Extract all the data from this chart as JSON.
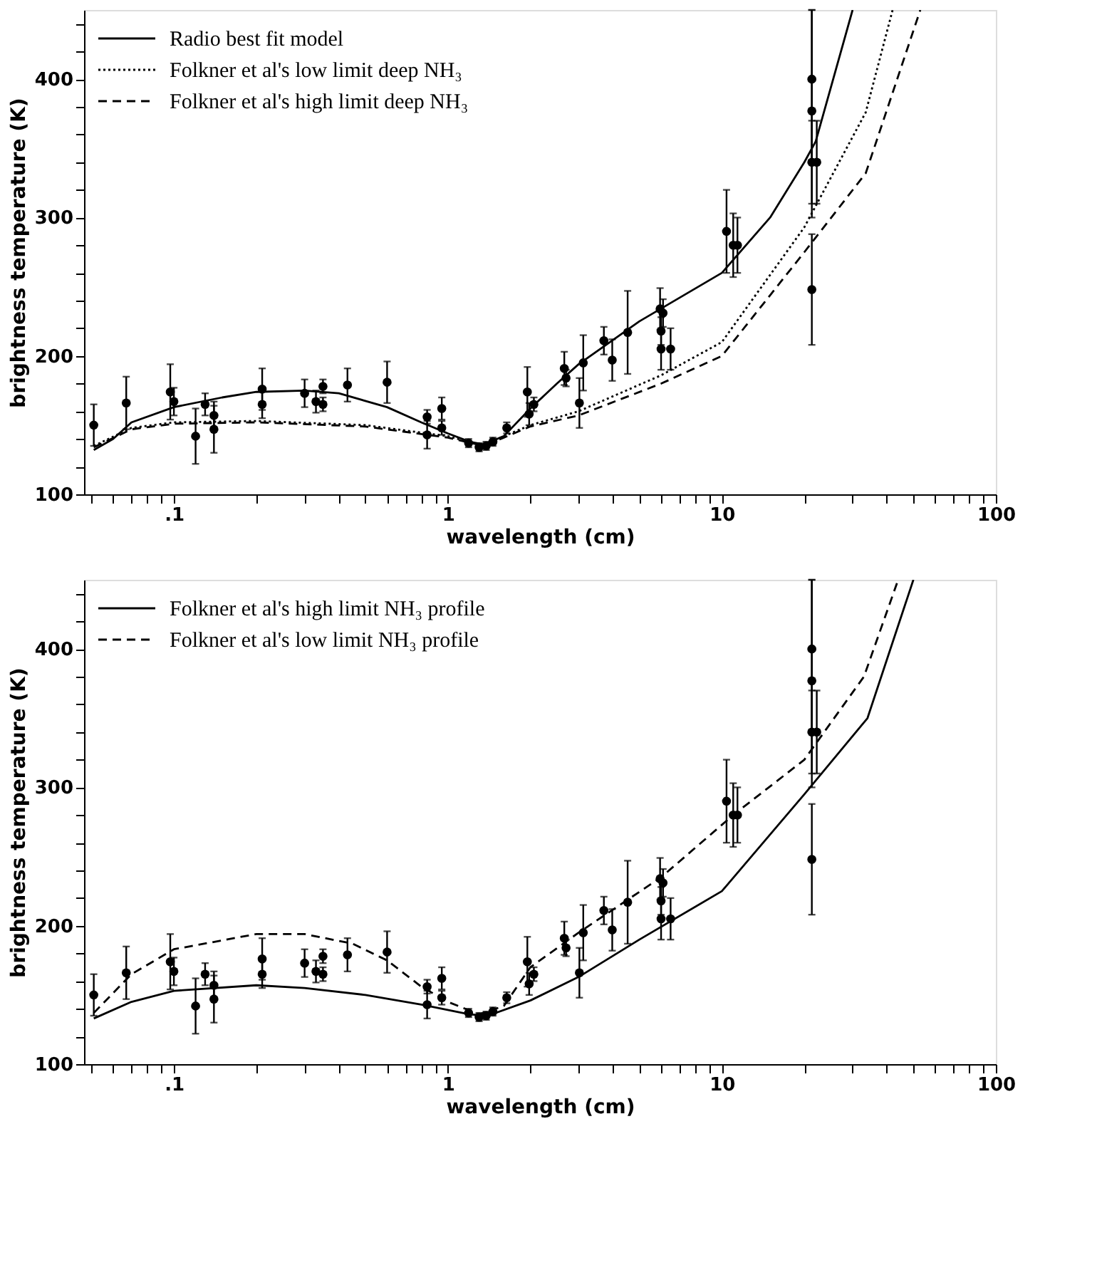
{
  "chart_data": [
    {
      "type": "line",
      "xlabel": "wavelength (cm)",
      "ylabel": "brightness temperature (K)",
      "log": "x",
      "legend": "top left",
      "grid": false,
      "xlim": [
        0.047,
        100
      ],
      "ylim": [
        100,
        450
      ],
      "xticks": [
        {
          "value": 0.05,
          "label": null
        },
        {
          "value": 0.06,
          "label": null
        },
        {
          "value": 0.07,
          "label": null
        },
        {
          "value": 0.08,
          "label": null
        },
        {
          "value": 0.09,
          "label": null
        },
        {
          "value": 0.1,
          "label": ".1"
        },
        {
          "value": 0.2,
          "label": null
        },
        {
          "value": 0.3,
          "label": null
        },
        {
          "value": 0.4,
          "label": null
        },
        {
          "value": 0.5,
          "label": null
        },
        {
          "value": 0.6,
          "label": null
        },
        {
          "value": 0.7,
          "label": null
        },
        {
          "value": 0.8,
          "label": null
        },
        {
          "value": 0.9,
          "label": null
        },
        1,
        {
          "value": 2,
          "label": null
        },
        {
          "value": 3,
          "label": null
        },
        {
          "value": 4,
          "label": null
        },
        {
          "value": 5,
          "label": null
        },
        {
          "value": 6,
          "label": null
        },
        {
          "value": 7,
          "label": null
        },
        {
          "value": 8,
          "label": null
        },
        {
          "value": 9,
          "label": null
        },
        10,
        {
          "value": 20,
          "label": null
        },
        {
          "value": 30,
          "label": null
        },
        {
          "value": 40,
          "label": null
        },
        {
          "value": 50,
          "label": null
        },
        {
          "value": 60,
          "label": null
        },
        {
          "value": 70,
          "label": null
        },
        {
          "value": 80,
          "label": null
        },
        {
          "value": 90,
          "label": null
        },
        100
      ],
      "yticks": [
        100,
        {
          "value": 120,
          "label": null
        },
        {
          "value": 140,
          "label": null
        },
        {
          "value": 160,
          "label": null
        },
        {
          "value": 180,
          "label": null
        },
        200,
        {
          "value": 220,
          "label": null
        },
        {
          "value": 240,
          "label": null
        },
        {
          "value": 260,
          "label": null
        },
        {
          "value": 280,
          "label": null
        },
        300,
        {
          "value": 320,
          "label": null
        },
        {
          "value": 340,
          "label": null
        },
        {
          "value": 360,
          "label": null
        },
        {
          "value": 380,
          "label": null
        },
        400,
        {
          "value": 420,
          "label": null
        },
        {
          "value": 440,
          "label": null
        }
      ],
      "series": [
        {
          "name": "Radio best fit model",
          "type": "line",
          "line_style": "solid",
          "color": "#000000",
          "x": [
            0.051,
            0.06,
            0.07,
            0.1,
            0.15,
            0.2,
            0.3,
            0.4,
            0.6,
            0.8,
            1.0,
            1.2,
            1.35,
            1.6,
            2,
            2.5,
            3,
            5,
            10,
            15,
            20,
            22,
            30
          ],
          "values": [
            132,
            140,
            152,
            163,
            170,
            174,
            175,
            173,
            163,
            152,
            144,
            138,
            136,
            142,
            162,
            180,
            194,
            225,
            260,
            300,
            340,
            355,
            450
          ]
        },
        {
          "name": "Folkner et al's low limit deep NH₃",
          "type": "line",
          "line_style": "dotted",
          "color": "#000000",
          "x": [
            0.051,
            0.07,
            0.1,
            0.2,
            0.5,
            1,
            1.35,
            1.6,
            2,
            3,
            6,
            10,
            20,
            33.5,
            42
          ],
          "values": [
            135,
            148,
            152,
            153,
            150,
            142,
            135,
            142,
            150,
            160,
            186,
            210,
            293,
            376,
            450
          ]
        },
        {
          "name": "Folkner et al's high limit deep NH₃",
          "type": "line",
          "line_style": "dashed",
          "color": "#000000",
          "x": [
            0.051,
            0.07,
            0.1,
            0.2,
            0.5,
            1,
            1.35,
            1.6,
            2,
            3,
            6,
            10,
            20,
            33.5,
            53
          ],
          "values": [
            134,
            147,
            151,
            152,
            149,
            141,
            135,
            141,
            149,
            157,
            180,
            200,
            275,
            332,
            450
          ]
        },
        {
          "type": "scatter",
          "marker": "circle",
          "color": "#000000",
          "x": [
            0.051,
            0.067,
            0.097,
            0.1,
            0.12,
            0.13,
            0.14,
            0.14,
            0.21,
            0.21,
            0.3,
            0.33,
            0.35,
            0.35,
            0.43,
            0.6,
            0.84,
            0.84,
            0.95,
            0.95,
            1.19,
            1.3,
            1.38,
            1.46,
            1.64,
            1.95,
            1.98,
            2.06,
            2.66,
            2.7,
            3.02,
            3.12,
            3.71,
            3.98,
            4.53,
            5.95,
            6.1,
            6.0,
            6.0,
            6.5,
            10.4,
            11.0,
            11.4,
            21.3,
            21.3,
            21.3,
            22.2,
            21.3
          ],
          "values": [
            150,
            166,
            174,
            167,
            142,
            165,
            157,
            147,
            176,
            165,
            173,
            167,
            178,
            165,
            179,
            181,
            156,
            143,
            162,
            148,
            137,
            134,
            135,
            138,
            148,
            174,
            158,
            165,
            191,
            184,
            166,
            195,
            211,
            197,
            217,
            234,
            231,
            218,
            205,
            205,
            290,
            280,
            280,
            400,
            377,
            340,
            340,
            248
          ],
          "errors": [
            15,
            19,
            20,
            10,
            20,
            8,
            10,
            17,
            15,
            10,
            10,
            8,
            5,
            5,
            12,
            15,
            5,
            10,
            8,
            5,
            3,
            3,
            3,
            3,
            4,
            18,
            8,
            5,
            12,
            6,
            18,
            20,
            10,
            15,
            30,
            15,
            10,
            10,
            15,
            15,
            30,
            23,
            20,
            [
              340,
              450
            ],
            [
              300,
              450
            ],
            30,
            30,
            40
          ]
        }
      ]
    },
    {
      "type": "line",
      "xlabel": "wavelength (cm)",
      "ylabel": "brightness temperature (K)",
      "log": "x",
      "legend": "top left",
      "grid": false,
      "xlim": [
        0.047,
        100
      ],
      "ylim": [
        100,
        450
      ],
      "xticks": [
        {
          "value": 0.05,
          "label": null
        },
        {
          "value": 0.06,
          "label": null
        },
        {
          "value": 0.07,
          "label": null
        },
        {
          "value": 0.08,
          "label": null
        },
        {
          "value": 0.09,
          "label": null
        },
        {
          "value": 0.1,
          "label": ".1"
        },
        {
          "value": 0.2,
          "label": null
        },
        {
          "value": 0.3,
          "label": null
        },
        {
          "value": 0.4,
          "label": null
        },
        {
          "value": 0.5,
          "label": null
        },
        {
          "value": 0.6,
          "label": null
        },
        {
          "value": 0.7,
          "label": null
        },
        {
          "value": 0.8,
          "label": null
        },
        {
          "value": 0.9,
          "label": null
        },
        1,
        {
          "value": 2,
          "label": null
        },
        {
          "value": 3,
          "label": null
        },
        {
          "value": 4,
          "label": null
        },
        {
          "value": 5,
          "label": null
        },
        {
          "value": 6,
          "label": null
        },
        {
          "value": 7,
          "label": null
        },
        {
          "value": 8,
          "label": null
        },
        {
          "value": 9,
          "label": null
        },
        10,
        {
          "value": 20,
          "label": null
        },
        {
          "value": 30,
          "label": null
        },
        {
          "value": 40,
          "label": null
        },
        {
          "value": 50,
          "label": null
        },
        {
          "value": 60,
          "label": null
        },
        {
          "value": 70,
          "label": null
        },
        {
          "value": 80,
          "label": null
        },
        {
          "value": 90,
          "label": null
        },
        100
      ],
      "yticks": [
        100,
        {
          "value": 120,
          "label": null
        },
        {
          "value": 140,
          "label": null
        },
        {
          "value": 160,
          "label": null
        },
        {
          "value": 180,
          "label": null
        },
        200,
        {
          "value": 220,
          "label": null
        },
        {
          "value": 240,
          "label": null
        },
        {
          "value": 260,
          "label": null
        },
        {
          "value": 280,
          "label": null
        },
        300,
        {
          "value": 320,
          "label": null
        },
        {
          "value": 340,
          "label": null
        },
        {
          "value": 360,
          "label": null
        },
        {
          "value": 380,
          "label": null
        },
        400,
        {
          "value": 420,
          "label": null
        },
        {
          "value": 440,
          "label": null
        }
      ],
      "series": [
        {
          "name": "Folkner et al's high limit NH₃ profile",
          "type": "line",
          "line_style": "solid",
          "color": "#000000",
          "x": [
            0.051,
            0.07,
            0.1,
            0.2,
            0.3,
            0.5,
            0.8,
            1.2,
            1.4,
            2,
            3,
            5,
            10,
            20,
            34,
            50
          ],
          "values": [
            133,
            145,
            153,
            157,
            155,
            150,
            143,
            136,
            135,
            146,
            163,
            190,
            225,
            295,
            350,
            450
          ]
        },
        {
          "name": "Folkner et al's low limit NH₃ profile",
          "type": "line",
          "line_style": "dashed",
          "color": "#000000",
          "x": [
            0.051,
            0.07,
            0.1,
            0.2,
            0.3,
            0.45,
            0.6,
            0.8,
            1,
            1.3,
            1.6,
            2,
            3,
            6,
            11,
            20,
            33,
            44
          ],
          "values": [
            137,
            165,
            183,
            194,
            194,
            187,
            175,
            156,
            145,
            136,
            142,
            170,
            195,
            235,
            280,
            320,
            380,
            450
          ]
        },
        {
          "type": "scatter",
          "marker": "circle",
          "color": "#000000",
          "x": [
            0.051,
            0.067,
            0.097,
            0.1,
            0.12,
            0.13,
            0.14,
            0.14,
            0.21,
            0.21,
            0.3,
            0.33,
            0.35,
            0.35,
            0.43,
            0.6,
            0.84,
            0.84,
            0.95,
            0.95,
            1.19,
            1.3,
            1.38,
            1.46,
            1.64,
            1.95,
            1.98,
            2.06,
            2.66,
            2.7,
            3.02,
            3.12,
            3.71,
            3.98,
            4.53,
            5.95,
            6.1,
            6.0,
            6.0,
            6.5,
            10.4,
            11.0,
            11.4,
            21.3,
            21.3,
            21.3,
            22.2,
            21.3
          ],
          "values": [
            150,
            166,
            174,
            167,
            142,
            165,
            157,
            147,
            176,
            165,
            173,
            167,
            178,
            165,
            179,
            181,
            156,
            143,
            162,
            148,
            137,
            134,
            135,
            138,
            148,
            174,
            158,
            165,
            191,
            184,
            166,
            195,
            211,
            197,
            217,
            234,
            231,
            218,
            205,
            205,
            290,
            280,
            280,
            400,
            377,
            340,
            340,
            248
          ],
          "errors": [
            15,
            19,
            20,
            10,
            20,
            8,
            10,
            17,
            15,
            10,
            10,
            8,
            5,
            5,
            12,
            15,
            5,
            10,
            8,
            5,
            3,
            3,
            3,
            3,
            4,
            18,
            8,
            5,
            12,
            6,
            18,
            20,
            10,
            15,
            30,
            15,
            10,
            10,
            15,
            15,
            30,
            23,
            20,
            [
              340,
              450
            ],
            [
              300,
              450
            ],
            30,
            30,
            40
          ]
        }
      ]
    }
  ]
}
